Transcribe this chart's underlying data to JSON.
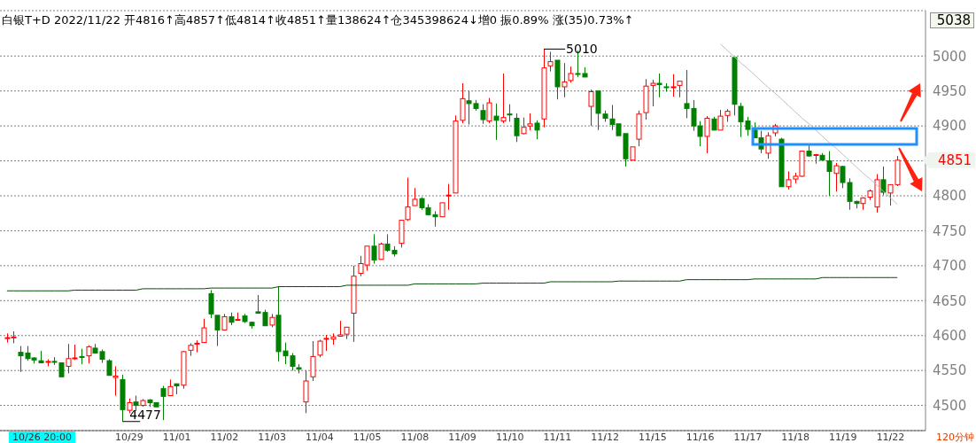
{
  "chart_data": {
    "type": "candlestick",
    "title": "白银T+D 2022/11/22 开4816↑高4857↑低4814↑收4851↑量138624↑仓345398624↓增0 振0.89% 涨(35)0.73%↑",
    "categories": [
      null,
      null,
      null,
      null,
      null,
      null,
      null,
      null,
      null,
      null,
      null,
      null,
      null,
      null,
      null,
      null,
      null,
      null,
      "10/29",
      null,
      null,
      null,
      null,
      null,
      null,
      "11/01",
      null,
      null,
      null,
      null,
      null,
      null,
      "11/02",
      null,
      null,
      null,
      null,
      null,
      null,
      "11/03",
      null,
      null,
      null,
      null,
      null,
      null,
      "11/04",
      null,
      null,
      null,
      null,
      null,
      null,
      "11/05",
      null,
      null,
      null,
      null,
      null,
      null,
      "11/08",
      null,
      null,
      null,
      null,
      null,
      null,
      "11/09",
      null,
      null,
      null,
      null,
      null,
      null,
      "11/10",
      null,
      null,
      null,
      null,
      null,
      null,
      "11/11",
      null,
      null,
      null,
      null,
      null,
      null,
      "11/12",
      null,
      null,
      null,
      null,
      null,
      null,
      "11/15",
      null,
      null,
      null,
      null,
      null,
      null,
      "11/16",
      null,
      null,
      null,
      null,
      null,
      null,
      "11/17",
      null,
      null,
      null,
      null,
      null,
      null,
      "11/18",
      null,
      null,
      null,
      null,
      null,
      null,
      "11/19",
      null,
      null,
      null,
      null,
      null,
      null,
      "11/22",
      null
    ],
    "ohlc": [
      [
        4596,
        4603,
        4590,
        4597
      ],
      [
        4597,
        4606,
        4589,
        4598
      ],
      [
        4576,
        4585,
        4548,
        4571
      ],
      [
        4575,
        4585,
        4564,
        4567
      ],
      [
        4568,
        4569,
        4560,
        4565
      ],
      [
        4564,
        4578,
        4561,
        4561
      ],
      [
        4562,
        4566,
        4556,
        4563
      ],
      [
        4563,
        4569,
        4558,
        4562
      ],
      [
        4561,
        4561,
        4541,
        4541
      ],
      [
        4556,
        4588,
        4546,
        4567
      ],
      [
        4567,
        4587,
        4565,
        4568
      ],
      [
        4570,
        4581,
        4559,
        4569
      ],
      [
        4571,
        4586,
        4560,
        4584
      ],
      [
        4582,
        4588,
        4575,
        4575
      ],
      [
        4577,
        4580,
        4561,
        4566
      ],
      [
        4564,
        4566,
        4543,
        4543
      ],
      [
        4540,
        4556,
        4514,
        4542
      ],
      [
        4537,
        4544,
        4477,
        4494
      ],
      [
        4493,
        4510,
        4489,
        4504
      ],
      [
        4505,
        4514,
        4492,
        4500
      ],
      [
        4500,
        4509,
        4498,
        4507
      ],
      [
        4508,
        4509,
        4498,
        4504
      ],
      [
        4504,
        4504,
        4498,
        4498
      ],
      [
        4524,
        4528,
        4479,
        4513
      ],
      [
        4514,
        4537,
        4514,
        4527
      ],
      [
        4531,
        4531,
        4516,
        4528
      ],
      [
        4529,
        4578,
        4524,
        4577
      ],
      [
        4579,
        4589,
        4571,
        4586
      ],
      [
        4588,
        4593,
        4576,
        4589
      ],
      [
        4590,
        4624,
        4590,
        4611
      ],
      [
        4660,
        4665,
        4625,
        4631
      ],
      [
        4629,
        4629,
        4585,
        4608
      ],
      [
        4608,
        4631,
        4608,
        4627
      ],
      [
        4627,
        4633,
        4615,
        4619
      ],
      [
        4622,
        4633,
        4622,
        4623
      ],
      [
        4628,
        4631,
        4618,
        4620
      ],
      [
        4619,
        4620,
        4610,
        4614
      ],
      [
        4634,
        4658,
        4632,
        4632
      ],
      [
        4633,
        4637,
        4614,
        4614
      ],
      [
        4615,
        4631,
        4612,
        4626
      ],
      [
        4629,
        4670,
        4563,
        4577
      ],
      [
        4578,
        4590,
        4559,
        4571
      ],
      [
        4571,
        4575,
        4550,
        4556
      ],
      [
        4554,
        4559,
        4546,
        4552
      ],
      [
        4505,
        4550,
        4489,
        4535
      ],
      [
        4541,
        4592,
        4535,
        4570
      ],
      [
        4572,
        4594,
        4569,
        4592
      ],
      [
        4595,
        4601,
        4578,
        4596
      ],
      [
        4595,
        4603,
        4587,
        4598
      ],
      [
        4599,
        4621,
        4599,
        4601
      ],
      [
        4602,
        4612,
        4595,
        4612
      ],
      [
        4632,
        4700,
        4591,
        4685
      ],
      [
        4689,
        4714,
        4685,
        4703
      ],
      [
        4701,
        4728,
        4693,
        4728
      ],
      [
        4728,
        4745,
        4703,
        4708
      ],
      [
        4709,
        4733,
        4709,
        4731
      ],
      [
        4731,
        4745,
        4720,
        4722
      ],
      [
        4722,
        4728,
        4713,
        4717
      ],
      [
        4732,
        4765,
        4726,
        4765
      ],
      [
        4766,
        4826,
        4764,
        4784
      ],
      [
        4786,
        4811,
        4786,
        4795
      ],
      [
        4796,
        4798,
        4780,
        4783
      ],
      [
        4783,
        4788,
        4772,
        4773
      ],
      [
        4773,
        4778,
        4756,
        4770
      ],
      [
        4770,
        4790,
        4770,
        4790
      ],
      [
        4800,
        4817,
        4780,
        4801
      ],
      [
        4804,
        4915,
        4804,
        4907
      ],
      [
        4908,
        4961,
        4904,
        4939
      ],
      [
        4936,
        4950,
        4902,
        4932
      ],
      [
        4932,
        4937,
        4922,
        4925
      ],
      [
        4922,
        4931,
        4903,
        4909
      ],
      [
        4907,
        4940,
        4904,
        4933
      ],
      [
        4914,
        4932,
        4880,
        4908
      ],
      [
        4907,
        4975,
        4904,
        4912
      ],
      [
        4917,
        4931,
        4906,
        4916
      ],
      [
        4911,
        4918,
        4877,
        4886
      ],
      [
        4889,
        4912,
        4888,
        4898
      ],
      [
        4900,
        4918,
        4894,
        4903
      ],
      [
        4904,
        4908,
        4881,
        4894
      ],
      [
        4910,
        5010,
        4898,
        4983
      ],
      [
        4986,
        5006,
        4978,
        4992
      ],
      [
        4994,
        4994,
        4938,
        4956
      ],
      [
        4956,
        4990,
        4941,
        4963
      ],
      [
        4965,
        4985,
        4962,
        4975
      ],
      [
        4975,
        5008,
        4970,
        4974
      ],
      [
        4975,
        4984,
        4970,
        4970
      ],
      [
        4928,
        4952,
        4900,
        4949
      ],
      [
        4950,
        4950,
        4894,
        4918
      ],
      [
        4917,
        4922,
        4906,
        4911
      ],
      [
        4910,
        4930,
        4894,
        4902
      ],
      [
        4903,
        4903,
        4886,
        4886
      ],
      [
        4889,
        4889,
        4842,
        4853
      ],
      [
        4851,
        4870,
        4851,
        4870
      ],
      [
        4881,
        4922,
        4871,
        4917
      ],
      [
        4919,
        4967,
        4909,
        4957
      ],
      [
        4958,
        4966,
        4928,
        4961
      ],
      [
        4961,
        4975,
        4941,
        4959
      ],
      [
        4956,
        4961,
        4949,
        4955
      ],
      [
        4955,
        4974,
        4942,
        4956
      ],
      [
        4958,
        4964,
        4941,
        4964
      ],
      [
        4932,
        4980,
        4911,
        4925
      ],
      [
        4925,
        4937,
        4893,
        4900
      ],
      [
        4900,
        4907,
        4871,
        4885
      ],
      [
        4885,
        4914,
        4861,
        4911
      ],
      [
        4910,
        4913,
        4894,
        4894
      ],
      [
        4894,
        4923,
        4894,
        4914
      ],
      [
        4915,
        4924,
        4906,
        4921
      ],
      [
        4998,
        4998,
        4915,
        4931
      ],
      [
        4928,
        4933,
        4884,
        4906
      ],
      [
        4907,
        4913,
        4886,
        4895
      ],
      [
        4894,
        4905,
        4883,
        4883
      ],
      [
        4883,
        4893,
        4861,
        4867
      ],
      [
        4861,
        4891,
        4853,
        4886
      ],
      [
        4890,
        4903,
        4885,
        4900
      ],
      [
        4881,
        4883,
        4813,
        4813
      ],
      [
        4813,
        4835,
        4809,
        4823
      ],
      [
        4824,
        4833,
        4818,
        4828
      ],
      [
        4828,
        4864,
        4827,
        4864
      ],
      [
        4864,
        4872,
        4856,
        4857
      ],
      [
        4858,
        4860,
        4846,
        4859
      ],
      [
        4858,
        4861,
        4851,
        4851
      ],
      [
        4850,
        4864,
        4800,
        4835
      ],
      [
        4832,
        4847,
        4806,
        4843
      ],
      [
        4842,
        4843,
        4811,
        4819
      ],
      [
        4819,
        4825,
        4780,
        4792
      ],
      [
        4792,
        4793,
        4782,
        4789
      ],
      [
        4789,
        4798,
        4780,
        4797
      ],
      [
        4798,
        4809,
        4794,
        4807
      ],
      [
        4784,
        4831,
        4776,
        4823
      ],
      [
        4823,
        4842,
        4801,
        4805
      ],
      [
        4804,
        4816,
        4786,
        4816
      ],
      [
        4816,
        4857,
        4814,
        4851
      ]
    ],
    "series": [
      {
        "type": "line",
        "color": "#004d00",
        "values": [
          4664,
          4664,
          4664,
          4664,
          4664,
          4664,
          4664,
          4664,
          4664,
          4664,
          4665,
          4665,
          4665,
          4665,
          4665,
          4665,
          4665,
          4665,
          4665,
          4665,
          4667,
          4667,
          4667,
          4667,
          4667,
          4667,
          4667,
          4667,
          4667,
          4667,
          4668,
          4668,
          4668,
          4668,
          4668,
          4668,
          4668,
          4668,
          4668,
          4668,
          4670,
          4670,
          4670,
          4670,
          4670,
          4670,
          4670,
          4670,
          4670,
          4670,
          4672,
          4672,
          4672,
          4672,
          4672,
          4672,
          4672,
          4672,
          4672,
          4672,
          4674,
          4674,
          4674,
          4674,
          4674,
          4674,
          4674,
          4674,
          4674,
          4674,
          4675,
          4675,
          4675,
          4675,
          4675,
          4675,
          4675,
          4675,
          4675,
          4675,
          4677,
          4677,
          4677,
          4677,
          4677,
          4677,
          4677,
          4677,
          4677,
          4677,
          4678,
          4678,
          4678,
          4678,
          4678,
          4678,
          4678,
          4678,
          4678,
          4678,
          4680,
          4680,
          4680,
          4680,
          4680,
          4680,
          4680,
          4680,
          4680,
          4680,
          4681,
          4681,
          4681,
          4681,
          4681,
          4681,
          4681,
          4681,
          4681,
          4681,
          4683,
          4683,
          4683,
          4683,
          4683,
          4683,
          4683,
          4683,
          4683,
          4683,
          4683,
          4683
        ]
      },
      {
        "type": "line",
        "color": "#c0c0c0",
        "values": [
          null,
          null,
          null,
          null,
          null,
          null,
          null,
          null,
          null,
          null,
          null,
          null,
          null,
          null,
          null,
          null,
          null,
          null,
          null,
          null,
          null,
          null,
          null,
          null,
          null,
          null,
          null,
          null,
          null,
          null,
          null,
          null,
          null,
          null,
          null,
          null,
          null,
          null,
          null,
          null,
          null,
          null,
          null,
          null,
          null,
          null,
          null,
          null,
          null,
          null,
          null,
          null,
          null,
          null,
          null,
          null,
          null,
          null,
          null,
          null,
          null,
          null,
          null,
          null,
          null,
          null,
          null,
          null,
          null,
          null,
          null,
          null,
          null,
          null,
          null,
          null,
          null,
          null,
          null,
          null,
          null,
          null,
          null,
          null,
          null,
          null,
          null,
          null,
          null,
          null,
          null,
          null,
          null,
          null,
          null,
          null,
          null,
          null,
          null,
          null,
          null,
          null,
          null,
          null,
          null,
          5017,
          5008,
          4999,
          4990,
          4982,
          4973,
          4964,
          4955,
          4947,
          4938,
          4929,
          4920,
          4911,
          4903,
          4894,
          4885,
          4876,
          4868,
          4859,
          4850,
          4841,
          4832,
          4824,
          4815,
          4806,
          4797,
          4788
        ]
      }
    ],
    "ylim": [
      4464,
      5065
    ],
    "yticks": [
      4500,
      4550,
      4600,
      4650,
      4700,
      4750,
      4800,
      {
        "value": 4850,
        "label": null
      },
      4900,
      4950,
      5000
    ],
    "grid": "y",
    "annotations": [
      {
        "text": "5010",
        "y": 5010
      },
      "4477",
      "5038",
      "4851",
      "10/26 20:00",
      "120分钟"
    ]
  }
}
